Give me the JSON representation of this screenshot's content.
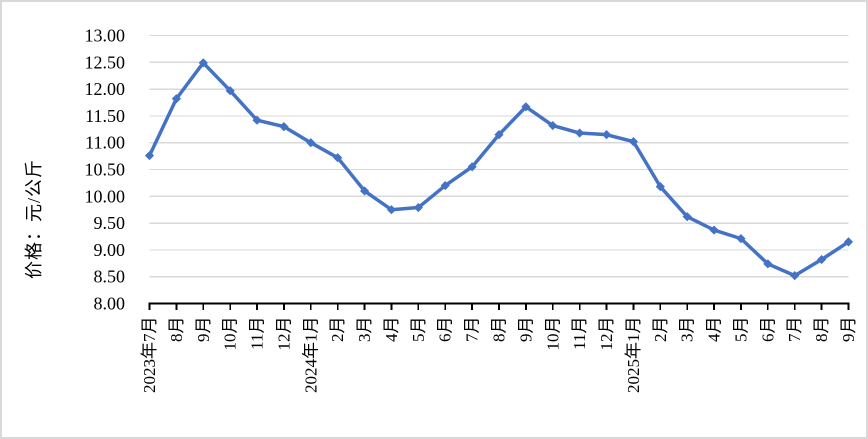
{
  "chart_data": {
    "type": "line",
    "ylabel": "价格：元/公斤",
    "categories": [
      "2023年7月",
      "8月",
      "9月",
      "10月",
      "11月",
      "12月",
      "2024年1月",
      "2月",
      "3月",
      "4月",
      "5月",
      "6月",
      "7月",
      "8月",
      "9月",
      "10月",
      "11月",
      "12月",
      "2025年1月",
      "2月",
      "3月",
      "4月",
      "5月",
      "6月",
      "7月",
      "8月",
      "9月"
    ],
    "values": [
      10.76,
      11.82,
      12.49,
      11.97,
      11.42,
      11.3,
      11.0,
      10.72,
      10.1,
      9.75,
      9.79,
      10.2,
      10.55,
      11.15,
      11.67,
      11.32,
      11.18,
      11.15,
      11.02,
      10.18,
      9.62,
      9.37,
      9.21,
      8.74,
      8.52,
      8.82,
      9.15
    ],
    "ylim": [
      8.0,
      13.0
    ],
    "yticks": [
      "8.00",
      "8.50",
      "9.00",
      "9.50",
      "10.00",
      "10.50",
      "11.00",
      "11.50",
      "12.00",
      "12.50",
      "13.00"
    ],
    "grid": true,
    "legend_position": "none",
    "line_color": "#4472C4",
    "marker_shape": "diamond",
    "gridline_color": "#D9D9D9",
    "axis_color": "#000000",
    "text_color": "#000000",
    "border_color": "#D9D9D9"
  }
}
